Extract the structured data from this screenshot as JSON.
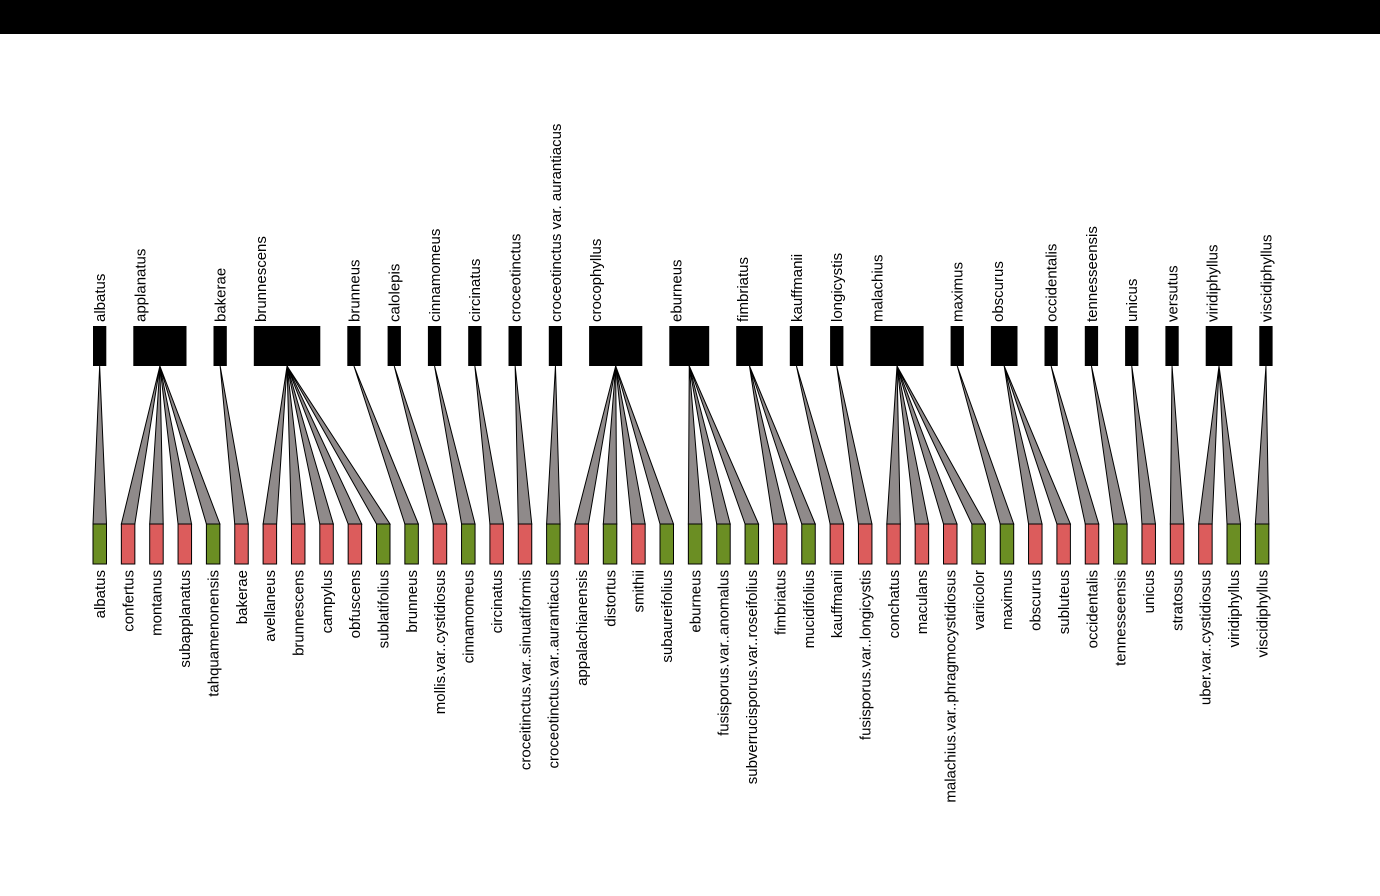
{
  "colors": {
    "top_bar": "#000000",
    "top_block": "#000000",
    "link_fill": "#8f8a8a",
    "link_stroke": "#000000",
    "green_box": "#6b8e23",
    "red_box": "#dc5c5c"
  },
  "top_nodes": [
    {
      "label": "albatus",
      "weight": 1
    },
    {
      "label": "applanatus",
      "weight": 4
    },
    {
      "label": "bakerae",
      "weight": 1
    },
    {
      "label": "brunnescens",
      "weight": 5
    },
    {
      "label": "brunneus",
      "weight": 1
    },
    {
      "label": "calolepis",
      "weight": 1
    },
    {
      "label": "cinnamomeus",
      "weight": 1
    },
    {
      "label": "circinatus",
      "weight": 1
    },
    {
      "label": "croceotinctus",
      "weight": 1
    },
    {
      "label": "croceotinctus var. aurantiacus",
      "weight": 1
    },
    {
      "label": "crocophyllus",
      "weight": 4
    },
    {
      "label": "eburneus",
      "weight": 3
    },
    {
      "label": "fimbriatus",
      "weight": 2
    },
    {
      "label": "kauffmanii",
      "weight": 1
    },
    {
      "label": "longicystis",
      "weight": 1
    },
    {
      "label": "malachius",
      "weight": 4
    },
    {
      "label": "maximus",
      "weight": 1
    },
    {
      "label": "obscurus",
      "weight": 2
    },
    {
      "label": "occidentalis",
      "weight": 1
    },
    {
      "label": "tennesseensis",
      "weight": 1
    },
    {
      "label": "unicus",
      "weight": 1
    },
    {
      "label": "versutus",
      "weight": 1
    },
    {
      "label": "viridiphyllus",
      "weight": 2
    },
    {
      "label": "viscidiphyllus",
      "weight": 1
    }
  ],
  "bottom_nodes": [
    {
      "label": "albatus",
      "color": "green",
      "parent": 0
    },
    {
      "label": "confertus",
      "color": "red",
      "parent": 1
    },
    {
      "label": "montanus",
      "color": "red",
      "parent": 1
    },
    {
      "label": "subapplanatus",
      "color": "red",
      "parent": 1
    },
    {
      "label": "tahquamenonensis",
      "color": "green",
      "parent": 1
    },
    {
      "label": "bakerae",
      "color": "red",
      "parent": 2
    },
    {
      "label": "avellaneus",
      "color": "red",
      "parent": 3
    },
    {
      "label": "brunnescens",
      "color": "red",
      "parent": 3
    },
    {
      "label": "campylus",
      "color": "red",
      "parent": 3
    },
    {
      "label": "obfuscens",
      "color": "red",
      "parent": 3
    },
    {
      "label": "sublatifolius",
      "color": "green",
      "parent": 3
    },
    {
      "label": "brunneus",
      "color": "green",
      "parent": 4
    },
    {
      "label": "mollis.var..cystidiosus",
      "color": "red",
      "parent": 5
    },
    {
      "label": "cinnamomeus",
      "color": "green",
      "parent": 6
    },
    {
      "label": "circinatus",
      "color": "red",
      "parent": 7
    },
    {
      "label": "croceitinctus.var..sinuatiformis",
      "color": "red",
      "parent": 8
    },
    {
      "label": "croceotinctus.var..aurantiacus",
      "color": "green",
      "parent": 9
    },
    {
      "label": "appalachianensis",
      "color": "red",
      "parent": 10
    },
    {
      "label": "distortus",
      "color": "green",
      "parent": 10
    },
    {
      "label": "smithii",
      "color": "red",
      "parent": 10
    },
    {
      "label": "subaureifolius",
      "color": "green",
      "parent": 10
    },
    {
      "label": "eburneus",
      "color": "green",
      "parent": 11
    },
    {
      "label": "fusisporus.var..anomalus",
      "color": "green",
      "parent": 11
    },
    {
      "label": "subverrucisporus.var..roseifolius",
      "color": "green",
      "parent": 11
    },
    {
      "label": "fimbriatus",
      "color": "red",
      "parent": 12
    },
    {
      "label": "mucidifolius",
      "color": "green",
      "parent": 12
    },
    {
      "label": "kauffmanii",
      "color": "red",
      "parent": 13
    },
    {
      "label": "fusisporus.var..longicystis",
      "color": "red",
      "parent": 14
    },
    {
      "label": "conchatus",
      "color": "red",
      "parent": 15
    },
    {
      "label": "maculans",
      "color": "red",
      "parent": 15
    },
    {
      "label": "malachius.var..phragmocystidiosus",
      "color": "red",
      "parent": 15
    },
    {
      "label": "variicolor",
      "color": "green",
      "parent": 15
    },
    {
      "label": "maximus",
      "color": "green",
      "parent": 16
    },
    {
      "label": "obscurus",
      "color": "red",
      "parent": 17
    },
    {
      "label": "subluteus",
      "color": "red",
      "parent": 17
    },
    {
      "label": "occidentalis",
      "color": "red",
      "parent": 18
    },
    {
      "label": "tennesseensis",
      "color": "green",
      "parent": 19
    },
    {
      "label": "unicus",
      "color": "red",
      "parent": 20
    },
    {
      "label": "stratosus",
      "color": "red",
      "parent": 21
    },
    {
      "label": "uber.var..cystidiosus",
      "color": "red",
      "parent": 22
    },
    {
      "label": "viridiphyllus",
      "color": "green",
      "parent": 22
    },
    {
      "label": "viscidiphyllus",
      "color": "green",
      "parent": 23
    }
  ]
}
